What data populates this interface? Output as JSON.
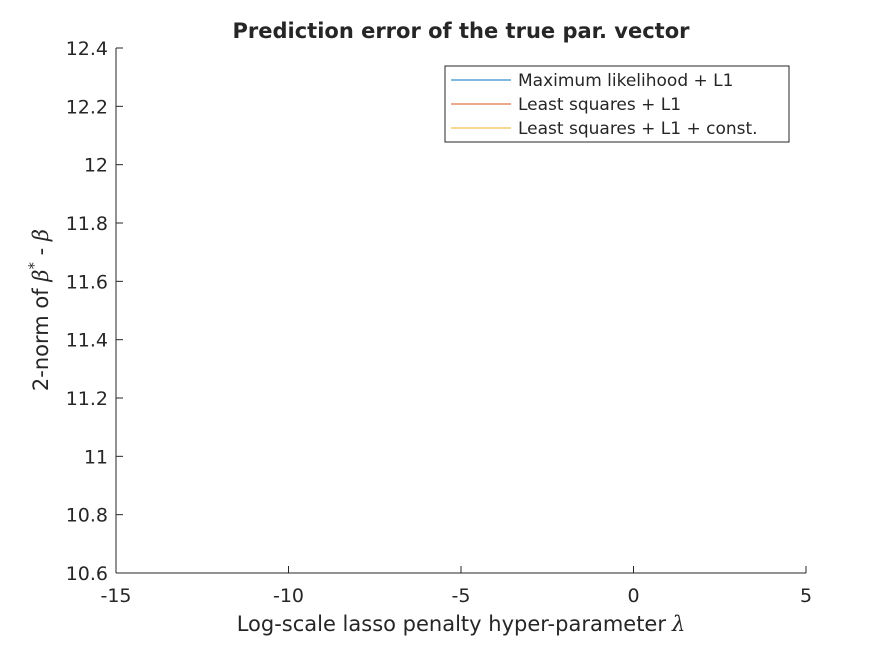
{
  "chart_data": {
    "type": "line",
    "title": "Prediction error of the true par. vector",
    "xlabel": "Log-scale lasso penalty hyper-parameter",
    "xlabel_symbol": "λ",
    "ylabel_prefix": "2-norm of ",
    "ylabel_beta_star": "β",
    "ylabel_star": "*",
    "ylabel_minus": " - ",
    "ylabel_beta": "β",
    "xlim": [
      -15,
      5
    ],
    "ylim": [
      10.6,
      12.4
    ],
    "xticks": [
      -15,
      -10,
      -5,
      0,
      5
    ],
    "xtick_labels": [
      "-15",
      "-10",
      "-5",
      "0",
      "5"
    ],
    "yticks": [
      10.6,
      10.8,
      11,
      11.2,
      11.4,
      11.6,
      11.8,
      12,
      12.2,
      12.4
    ],
    "ytick_labels": [
      "10.6",
      "10.8",
      "11",
      "11.2",
      "11.4",
      "11.6",
      "11.8",
      "12",
      "12.2",
      "12.4"
    ],
    "grid": false,
    "legend_position": "top-right",
    "series": [
      {
        "name": "Maximum likelihood + L1",
        "color": "#0072BD",
        "values": []
      },
      {
        "name": "Least squares + L1",
        "color": "#D95319",
        "values": []
      },
      {
        "name": "Least squares + L1 + const.",
        "color": "#EDB120",
        "values": []
      }
    ]
  }
}
